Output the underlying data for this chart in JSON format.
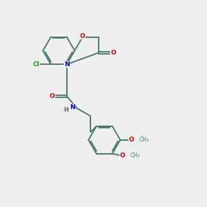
{
  "bg_color": "#efefef",
  "bond_color": "#4a7a6a",
  "atom_colors": {
    "O": "#cc0000",
    "N": "#0000cc",
    "Cl": "#00aa00",
    "H": "#5a5a7a"
  },
  "figsize": [
    3.0,
    3.0
  ],
  "dpi": 100
}
